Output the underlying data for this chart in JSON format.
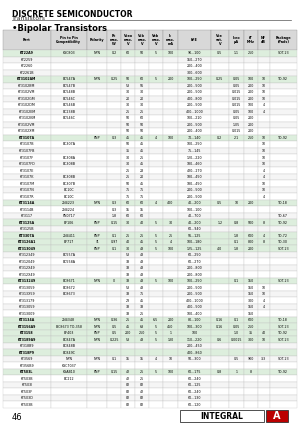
{
  "title": "DISCRETE SEMICONDUCTOR",
  "subtitle": "Transistors",
  "section_title": "•Bipolar Transistors",
  "headers": [
    "Part",
    "Pin to Pin\nCompatibility",
    "Polarity",
    "Pc\nmax.\nW",
    "Vceo\nmax.\nV",
    "Vcb\nmax.\nV",
    "Veb\nmax.\nV",
    "Ic\nmax.\nmA",
    "hFE",
    "Vce\nsat.\nV",
    "Iceo\nμA",
    "fT\nMHz",
    "NF\ndB",
    "Package\n(Pads)"
  ],
  "rows": [
    [
      "KT22A9",
      "KSC803",
      "NPN",
      "0.2",
      "60",
      "50",
      "5",
      "100",
      "90...100",
      "0.5",
      "1.1",
      "250",
      "",
      "SOT-23"
    ],
    [
      "KT2259",
      "",
      "",
      "",
      "",
      "",
      "",
      "",
      "150...270",
      "",
      "",
      "",
      "",
      ""
    ],
    [
      "KT2260",
      "",
      "",
      "",
      "",
      "",
      "",
      "",
      "200...400",
      "",
      "",
      "",
      "",
      ""
    ],
    [
      "KT2261B",
      "",
      "",
      "",
      "",
      "",
      "",
      "",
      "300...600",
      "",
      "",
      "",
      "",
      ""
    ],
    [
      "KT3102AM",
      "BC547A",
      "NPN",
      "0.25",
      "50",
      "60",
      "5",
      "200",
      "100...250",
      "0.25",
      "0.05",
      "100",
      "10",
      "TO-92"
    ],
    [
      "KT3102BM",
      "BC547B",
      "",
      "",
      "53",
      "56",
      "",
      "",
      "200...500",
      "",
      "0.05",
      "200",
      "10",
      ""
    ],
    [
      "KT3102VM",
      "BC548B",
      "",
      "",
      "30",
      "30",
      "",
      "",
      "200...500",
      "",
      "0.015",
      "200",
      "10",
      ""
    ],
    [
      "KT3102GM",
      "BC546C",
      "",
      "",
      "20",
      "20",
      "",
      "",
      "400...800",
      "",
      "0.015",
      "200",
      "10",
      ""
    ],
    [
      "KT3102DM",
      "BC546B",
      "",
      "",
      "30",
      "30",
      "",
      "",
      "200...500",
      "",
      "0.015",
      "100",
      "4",
      ""
    ],
    [
      "KT3102EM",
      "BC238B",
      "",
      "",
      "25",
      "25",
      "",
      "",
      "400...1000",
      "",
      "0.05",
      "100",
      "4",
      ""
    ],
    [
      "KT3102KM",
      "BC546C",
      "",
      "",
      "50",
      "60",
      "",
      "",
      "100...210",
      "",
      "0.05",
      "200",
      "",
      ""
    ],
    [
      "KT3102VM",
      "",
      "",
      "",
      "50",
      "50",
      "",
      "",
      "200...500",
      "",
      "1.05",
      "200",
      "",
      ""
    ],
    [
      "KT3102XM",
      "",
      "",
      "",
      "50",
      "50",
      "",
      "",
      "200...400",
      "",
      "0.015",
      "200",
      "",
      ""
    ],
    [
      "KT3107A",
      "",
      "PNP",
      "0.3",
      "45",
      "45",
      "4",
      "100",
      "70...140",
      "0.2",
      "2.1",
      "250",
      "10",
      "TO-92"
    ],
    [
      "KT3107B",
      "BC307A",
      "",
      "",
      "50",
      "45",
      "",
      "",
      "100...250",
      "",
      "",
      "",
      "10",
      ""
    ],
    [
      "KT3107FB",
      "",
      "",
      "",
      "35",
      "45",
      "",
      "",
      "75...145",
      "",
      "",
      "",
      "10",
      ""
    ],
    [
      "KT3107F",
      "BC308A",
      "",
      "",
      "30",
      "25",
      "",
      "",
      "120...220",
      "",
      "",
      "",
      "10",
      ""
    ],
    [
      "KT3107FD",
      "BC308B",
      "",
      "",
      "30",
      "45",
      "",
      "",
      "180...460",
      "",
      "",
      "",
      "10",
      ""
    ],
    [
      "KT3107E",
      "",
      "",
      "",
      "25",
      "28",
      "",
      "",
      "420...270",
      "",
      "",
      "",
      "4",
      ""
    ],
    [
      "KT3107K",
      "BC308B",
      "",
      "",
      "25",
      "20",
      "",
      "",
      "180...450",
      "",
      "",
      "",
      "4",
      ""
    ],
    [
      "KT3107M",
      "BC307B",
      "",
      "",
      "50",
      "45",
      "",
      "",
      "180...450",
      "",
      "",
      "",
      "10",
      ""
    ],
    [
      "KT3107N",
      "BC10C",
      "",
      "",
      "75",
      "75",
      "",
      "",
      "200...500",
      "",
      "",
      "",
      "10",
      ""
    ],
    [
      "KT3107R",
      "BC10C",
      "",
      "",
      "75",
      "75",
      "",
      "",
      "200...500",
      "",
      "",
      "",
      "4",
      ""
    ],
    [
      "KT3114A",
      "2N4223",
      "NPN",
      "0.3",
      "60",
      "60",
      "4",
      "400",
      "40...200",
      "0.5",
      "10",
      "200",
      "",
      "TO-18"
    ],
    [
      "KT3114B",
      "2N4224",
      "",
      "0.3",
      "15",
      "15",
      "",
      "",
      "100...100",
      "",
      "",
      "",
      "",
      ""
    ],
    [
      "KT3117",
      "PN0717",
      "",
      "1.8",
      "60",
      "60",
      "",
      "",
      "40...700",
      "",
      "",
      "",
      "",
      "TO-67"
    ],
    [
      "KT3125A",
      "BF106",
      "PNP",
      "0.15",
      "30",
      "40",
      "5",
      "30",
      "40...200",
      "1.2",
      "0.8",
      "500",
      "8",
      "TO-92"
    ],
    [
      "KT3125B",
      "",
      "",
      "",
      "",
      "",
      "",
      "",
      "60...940",
      "",
      "",
      "",
      "",
      ""
    ],
    [
      "KT3307A",
      "2N4411",
      "PNP",
      "0.1",
      "25",
      "25",
      "5",
      "25",
      "56...125",
      "",
      "1.8",
      "600",
      "4",
      "TO-72"
    ],
    [
      "KT3126A1",
      "BF717",
      "?1",
      "0.97",
      "40",
      "45",
      "5",
      "4",
      "100...180",
      "",
      "0.1",
      "800",
      "8",
      "TO-30"
    ],
    [
      "KT313049",
      "",
      "PNP",
      "0.1",
      "30",
      "43",
      "5",
      "100",
      "125...125",
      "4.0",
      "1.8",
      "200",
      "",
      "SOT-23"
    ],
    [
      "KT312349",
      "BC557A",
      "",
      "",
      "53",
      "43",
      "",
      "",
      "60...250",
      "",
      "",
      "",
      "",
      ""
    ],
    [
      "KT312049",
      "BC558A",
      "",
      "",
      "33",
      "43",
      "",
      "",
      "60...270",
      "",
      "",
      "",
      "",
      ""
    ],
    [
      "KT312X49",
      "",
      "",
      "",
      "33",
      "43",
      "",
      "",
      "200...800",
      "",
      "",
      "",
      "",
      ""
    ],
    [
      "KT312X49",
      "",
      "",
      "",
      "33",
      "43",
      "",
      "",
      "200...800",
      "",
      "",
      "",
      "",
      ""
    ],
    [
      "KT313249",
      "BC8671",
      "NPN",
      "0",
      "33",
      "43",
      "5",
      "100",
      "100...250",
      "",
      "0.1",
      "150",
      "",
      "SOT-23"
    ],
    [
      "KT313059",
      "BC8672",
      "",
      "",
      "53",
      "43",
      "",
      "",
      "200...500",
      "",
      "",
      "150",
      "10",
      ""
    ],
    [
      "KT313X59",
      "BC8673",
      "",
      "",
      "33",
      "75",
      "",
      "",
      "200...500",
      "",
      "",
      "150",
      "10",
      ""
    ],
    [
      "KT313179",
      "",
      "",
      "",
      "23",
      "45",
      "",
      "",
      "400...1000",
      "",
      "",
      "300",
      "4",
      ""
    ],
    [
      "KT313059",
      "",
      "",
      "",
      "33",
      "33",
      "",
      "",
      "400...500",
      "",
      "",
      "150",
      "4",
      ""
    ],
    [
      "KT313009",
      "",
      "",
      "",
      "33",
      "25",
      "",
      "",
      "100...400",
      "",
      "",
      "150",
      "",
      ""
    ],
    [
      "KT3134A",
      "2N4348",
      "NPN",
      "0.36",
      "25",
      "45",
      "6.5",
      "200",
      "80...100",
      "0.16",
      "0.1",
      "600",
      "",
      "TO-18"
    ],
    [
      "KT3156A9",
      "BC8673 TO-358",
      "NPN",
      "0.5",
      "45",
      "63",
      "5",
      "450",
      "100...300",
      "0.16",
      "0.05",
      "250",
      "",
      "SOT-23"
    ],
    [
      "KT3158",
      "BF403",
      "PNP",
      "0.5",
      "200",
      "250",
      "5",
      "1",
      "100",
      "",
      "1.0",
      "35",
      "40",
      "TO-92"
    ],
    [
      "KT3189A9",
      "BC847A",
      "NPN",
      "0.225",
      "53",
      "43",
      "5",
      "130",
      "110...220",
      "0.6",
      "0.0015",
      "300",
      "10",
      "SOT-23"
    ],
    [
      "KT318B9",
      "BC848B",
      "",
      "",
      "",
      "",
      "",
      "",
      "200...450",
      "",
      "",
      "",
      "",
      ""
    ],
    [
      "KT318P9",
      "BC849C",
      "",
      "",
      "",
      "",
      "",
      "",
      "400...860",
      "",
      "",
      "",
      "",
      ""
    ],
    [
      "KT3569",
      "NPN",
      "NPN",
      "0.1",
      "15",
      "15",
      "4",
      "10",
      "50...300",
      "",
      "0.5",
      "900",
      "3.3",
      "SOT-23"
    ],
    [
      "KT356B9",
      "KSC7037",
      "",
      "",
      "",
      "",
      "",
      "",
      "",
      "",
      "",
      "",
      "",
      ""
    ],
    [
      "KT503L",
      "KSAB10",
      "PNP",
      "0.15",
      "42",
      "25",
      "5",
      "100",
      "60...175",
      "0.8",
      "1",
      "8",
      "",
      "TO-92"
    ],
    [
      "KT503B",
      "BC212",
      "",
      "",
      "42",
      "25",
      "",
      "",
      "60...240",
      "",
      "",
      "",
      "",
      ""
    ],
    [
      "KT503I",
      "",
      "",
      "",
      "82",
      "82",
      "",
      "",
      "60...125",
      "",
      "",
      "",
      "",
      ""
    ],
    [
      "KT503F",
      "",
      "",
      "",
      "82",
      "42",
      "",
      "",
      "60...240",
      "",
      "",
      "",
      "",
      ""
    ],
    [
      "KT503D",
      "",
      "",
      "",
      "82",
      "82",
      "",
      "",
      "60...130",
      "",
      "",
      "",
      "",
      ""
    ],
    [
      "KT503B",
      "",
      "",
      "",
      "82",
      "82",
      "",
      "",
      "60...120",
      "",
      "",
      "",
      "",
      ""
    ]
  ],
  "highlight_rows": [
    0,
    4,
    13,
    23,
    26,
    28,
    29,
    30,
    35,
    41,
    42,
    43,
    44,
    46,
    49
  ],
  "bg_color": "#ffffff",
  "logo_text": "INTEGRAL",
  "page_number": "46"
}
